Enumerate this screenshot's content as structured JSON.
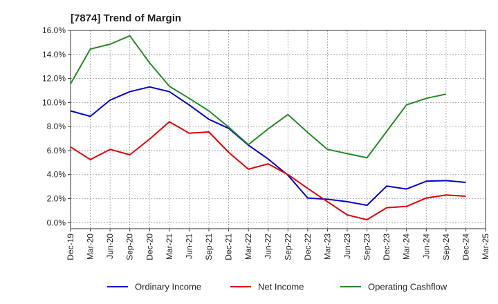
{
  "chart_data": {
    "type": "line",
    "title": "[7874]  Trend of Margin",
    "xlabel": "",
    "ylabel": "",
    "ylim": [
      -0.5,
      16.0
    ],
    "y_ticks": [
      "0.0%",
      "2.0%",
      "4.0%",
      "6.0%",
      "8.0%",
      "10.0%",
      "12.0%",
      "14.0%",
      "16.0%"
    ],
    "y_tick_values": [
      0,
      2,
      4,
      6,
      8,
      10,
      12,
      14,
      16
    ],
    "categories": [
      "Dec-19",
      "Mar-20",
      "Jun-20",
      "Sep-20",
      "Dec-20",
      "Mar-21",
      "Jun-21",
      "Sep-21",
      "Dec-21",
      "Mar-22",
      "Jun-22",
      "Sep-22",
      "Dec-22",
      "Mar-23",
      "Jun-23",
      "Sep-23",
      "Dec-23",
      "Mar-24",
      "Jun-24",
      "Sep-24",
      "Dec-24",
      "Mar-25"
    ],
    "grid": true,
    "legend_position": "bottom",
    "series": [
      {
        "name": "Ordinary Income",
        "color": "#0000cc",
        "values": [
          9.3,
          8.85,
          10.2,
          10.9,
          11.3,
          10.9,
          9.8,
          8.6,
          7.85,
          6.45,
          5.3,
          3.95,
          2.05,
          1.95,
          1.75,
          1.45,
          3.05,
          2.8,
          3.45,
          3.5,
          3.35,
          null
        ]
      },
      {
        "name": "Net Income",
        "color": "#dd0000",
        "values": [
          6.3,
          5.25,
          6.1,
          5.65,
          6.95,
          8.4,
          7.45,
          7.55,
          5.85,
          4.45,
          4.9,
          4.0,
          2.85,
          1.75,
          0.65,
          0.25,
          1.25,
          1.35,
          2.05,
          2.3,
          2.2,
          null
        ]
      },
      {
        "name": "Operating Cashflow",
        "color": "#228b22",
        "values": [
          11.55,
          14.45,
          14.85,
          15.55,
          13.3,
          11.35,
          10.35,
          9.3,
          7.95,
          6.5,
          7.8,
          9.0,
          7.5,
          6.1,
          5.75,
          5.4,
          7.6,
          9.8,
          10.35,
          10.7,
          null,
          null
        ]
      }
    ]
  }
}
